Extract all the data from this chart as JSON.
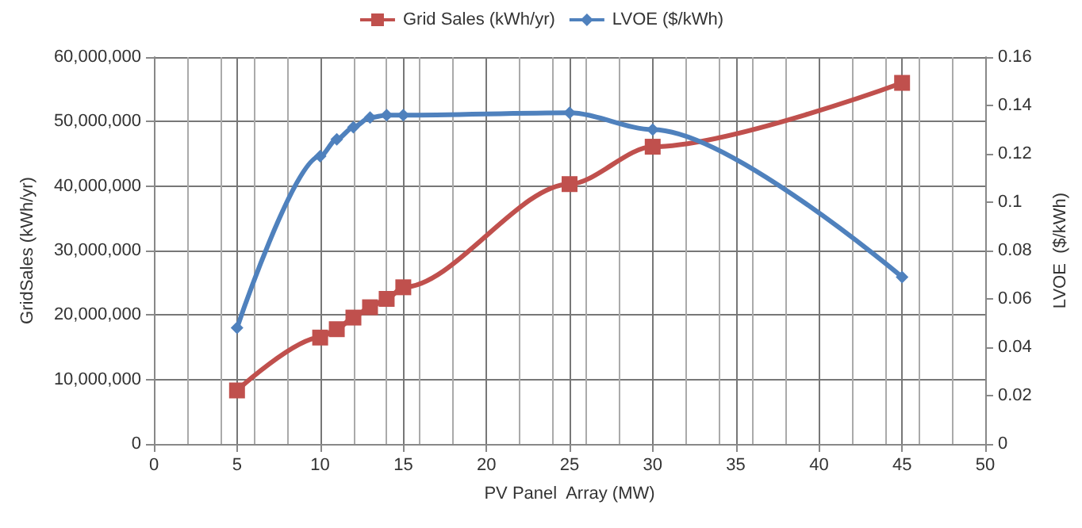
{
  "chart_data": {
    "type": "line",
    "xlabel": "PV Panel  Array (MW)",
    "ylabel": "GridSales (kWh/yr)",
    "y2label": "LVOE  ($/kWh)",
    "x": [
      5,
      10,
      11,
      12,
      13,
      14,
      15,
      25,
      30,
      45
    ],
    "series": [
      {
        "name": "Grid Sales (kWh/yr)",
        "color": "#c0504d",
        "marker": "square",
        "values": [
          8300000,
          16500000,
          17800000,
          19600000,
          21200000,
          22500000,
          24300000,
          40300000,
          46100000,
          56000000
        ]
      },
      {
        "name": "LVOE ($/kWh)",
        "color": "#4f81bd",
        "marker": "diamond",
        "axis": "y2",
        "values": [
          0.048,
          0.119,
          0.126,
          0.131,
          0.135,
          0.136,
          0.136,
          0.137,
          0.13,
          0.069
        ]
      }
    ],
    "xlim": [
      0,
      50
    ],
    "xticks": [
      0,
      5,
      10,
      15,
      20,
      25,
      30,
      35,
      40,
      45,
      50
    ],
    "ylim": [
      0,
      60000000
    ],
    "yticks": [
      {
        "value": 0,
        "label": "0"
      },
      {
        "value": 10000000,
        "label": "10,000,000"
      },
      {
        "value": 20000000,
        "label": "20,000,000"
      },
      {
        "value": 30000000,
        "label": "30,000,000"
      },
      {
        "value": 40000000,
        "label": "40,000,000"
      },
      {
        "value": 50000000,
        "label": "50,000,000"
      },
      {
        "value": 60000000,
        "label": "60,000,000"
      }
    ],
    "y2lim": [
      0,
      0.16
    ],
    "y2ticks": [
      0,
      0.02,
      0.04,
      0.06,
      0.08,
      0.1,
      0.12,
      0.14,
      0.16
    ],
    "grid": true,
    "legend": "top",
    "line_style": "solid"
  }
}
